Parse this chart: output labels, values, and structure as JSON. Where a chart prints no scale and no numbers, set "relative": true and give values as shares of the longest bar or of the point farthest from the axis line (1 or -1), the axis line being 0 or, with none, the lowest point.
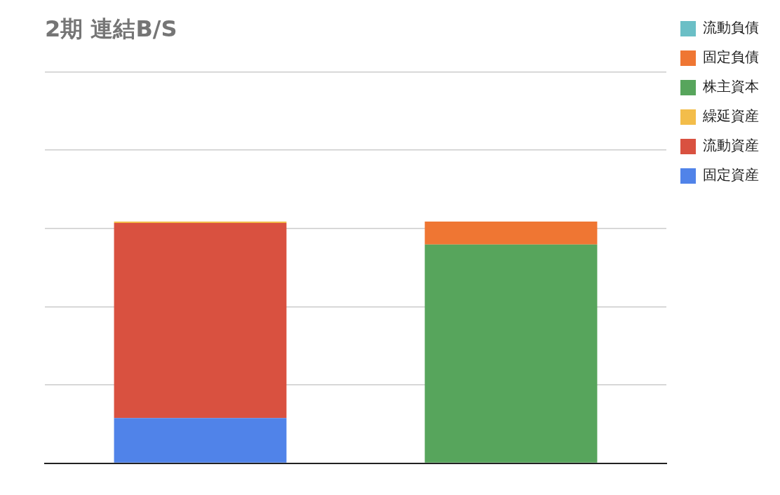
{
  "chart_data": {
    "type": "bar",
    "title": "2期 連結B/S",
    "categories": [
      null,
      null
    ],
    "stacked": true,
    "relative": true,
    "grid": "y",
    "legend": "top right",
    "series": [
      {
        "name": "固定資産",
        "color": "#5083e9",
        "values": [
          0.187,
          null
        ]
      },
      {
        "name": "流動資産",
        "color": "#d95140",
        "values": [
          0.807,
          null
        ]
      },
      {
        "name": "繰延資産",
        "color": "#f3bd4a",
        "values": [
          0.006,
          null
        ]
      },
      {
        "name": "株主資本",
        "color": "#57a55c",
        "values": [
          null,
          0.905
        ]
      },
      {
        "name": "固定負債",
        "color": "#ef7633",
        "values": [
          null,
          0.095
        ]
      },
      {
        "name": "流動負債",
        "color": "#6bbfc6",
        "values": [
          null,
          0
        ]
      }
    ]
  }
}
